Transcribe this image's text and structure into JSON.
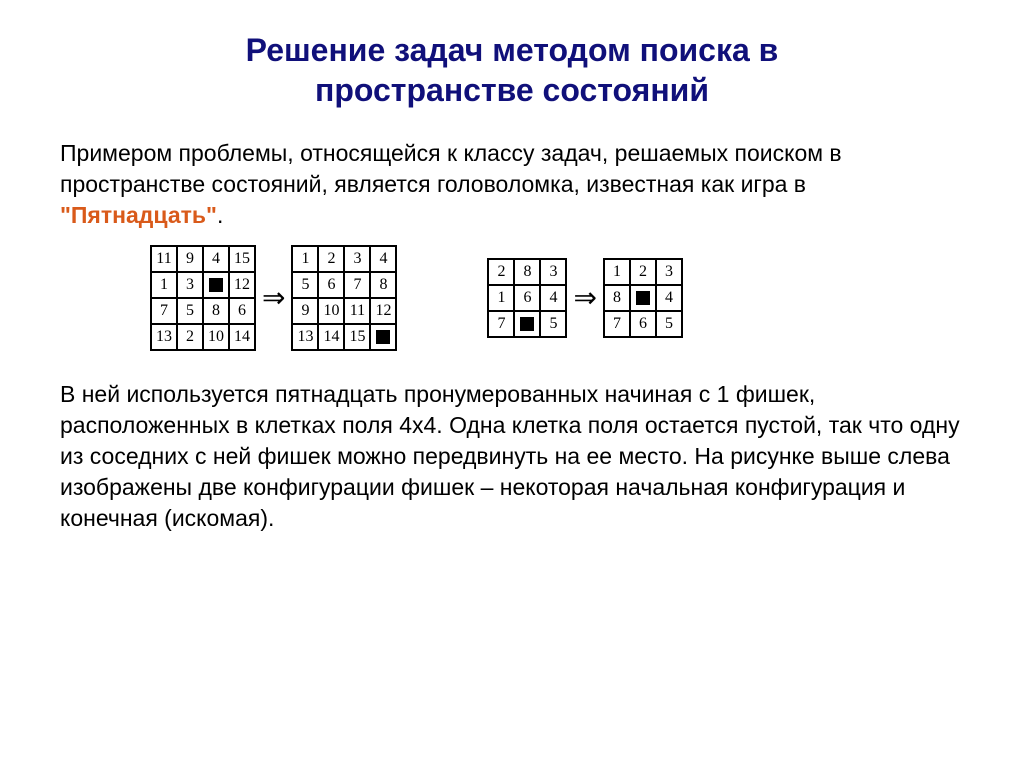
{
  "title_line1": "Решение задач методом поиска в",
  "title_line2": "пространстве состояний",
  "title_color": "#10107a",
  "intro_pre": "Примером проблемы, относящейся к  классу задач, решаемых поиском в пространстве состояний, является головоломка, известная как игра в ",
  "intro_highlight": "\"Пятнадцать\"",
  "intro_post": ".",
  "highlight_color": "#d95a1a",
  "arrow_glyph": "⇒",
  "puzzle4_start": [
    [
      "11",
      "9",
      "4",
      "15"
    ],
    [
      "1",
      "3",
      "■",
      "12"
    ],
    [
      "7",
      "5",
      "8",
      "6"
    ],
    [
      "13",
      "2",
      "10",
      "14"
    ]
  ],
  "puzzle4_goal": [
    [
      "1",
      "2",
      "3",
      "4"
    ],
    [
      "5",
      "6",
      "7",
      "8"
    ],
    [
      "9",
      "10",
      "11",
      "12"
    ],
    [
      "13",
      "14",
      "15",
      "■"
    ]
  ],
  "puzzle3_start": [
    [
      "2",
      "8",
      "3"
    ],
    [
      "1",
      "6",
      "4"
    ],
    [
      "7",
      "■",
      "5"
    ]
  ],
  "puzzle3_goal": [
    [
      "1",
      "2",
      "3"
    ],
    [
      "8",
      "■",
      "4"
    ],
    [
      "7",
      "6",
      "5"
    ]
  ],
  "body": "В ней используется пятнадцать пронумерованных начиная с 1 фишек, расположенных в клетках поля 4х4. Одна клетка поля остается пустой, так что одну из соседних с ней фишек можно передвинуть на ее место. На рисунке выше слева изображены две конфигурации фишек – некоторая начальная конфигурация и конечная (искомая)."
}
